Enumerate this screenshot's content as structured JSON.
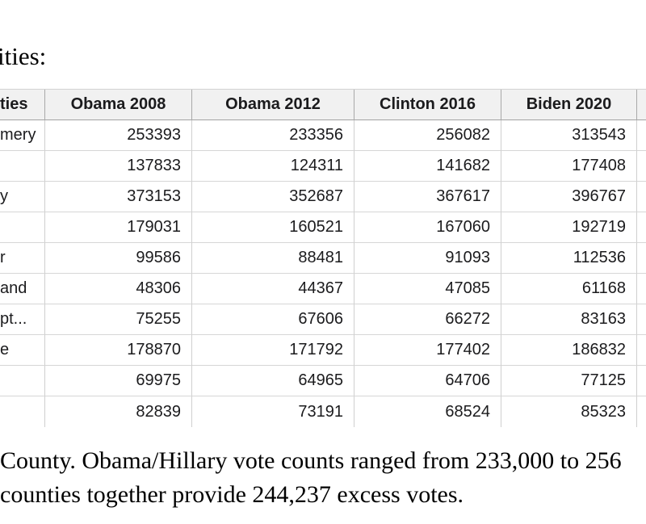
{
  "page": {
    "top_fragment": "ities:",
    "caption_line1": "County. Obama/Hillary vote counts ranged from 233,000 to 256",
    "caption_line2": "counties together provide 244,237 excess votes."
  },
  "table": {
    "columns": [
      "ties",
      "Obama 2008",
      "Obama 2012",
      "Clinton 2016",
      "Biden 2020"
    ],
    "rows": [
      {
        "county": "mery",
        "values": [
          "253393",
          "233356",
          "256082",
          "313543"
        ]
      },
      {
        "county": "",
        "values": [
          "137833",
          "124311",
          "141682",
          "177408"
        ]
      },
      {
        "county": "y",
        "values": [
          "373153",
          "352687",
          "367617",
          "396767"
        ]
      },
      {
        "county": "",
        "values": [
          "179031",
          "160521",
          "167060",
          "192719"
        ]
      },
      {
        "county": "r",
        "values": [
          "99586",
          "88481",
          "91093",
          "112536"
        ]
      },
      {
        "county": "and",
        "values": [
          "48306",
          "44367",
          "47085",
          "61168"
        ]
      },
      {
        "county": "pt...",
        "values": [
          "75255",
          "67606",
          "66272",
          "83163"
        ]
      },
      {
        "county": "e",
        "values": [
          "178870",
          "171792",
          "177402",
          "186832"
        ]
      },
      {
        "county": "",
        "values": [
          "69975",
          "64965",
          "64706",
          "77125"
        ]
      },
      {
        "county": "",
        "values": [
          "82839",
          "73191",
          "68524",
          "85323"
        ]
      }
    ],
    "colors": {
      "header_bg": "#f1f1f1",
      "header_border": "#a3a3a3",
      "grid_line": "#d6d6d6",
      "text": "#1b1b1d"
    }
  }
}
